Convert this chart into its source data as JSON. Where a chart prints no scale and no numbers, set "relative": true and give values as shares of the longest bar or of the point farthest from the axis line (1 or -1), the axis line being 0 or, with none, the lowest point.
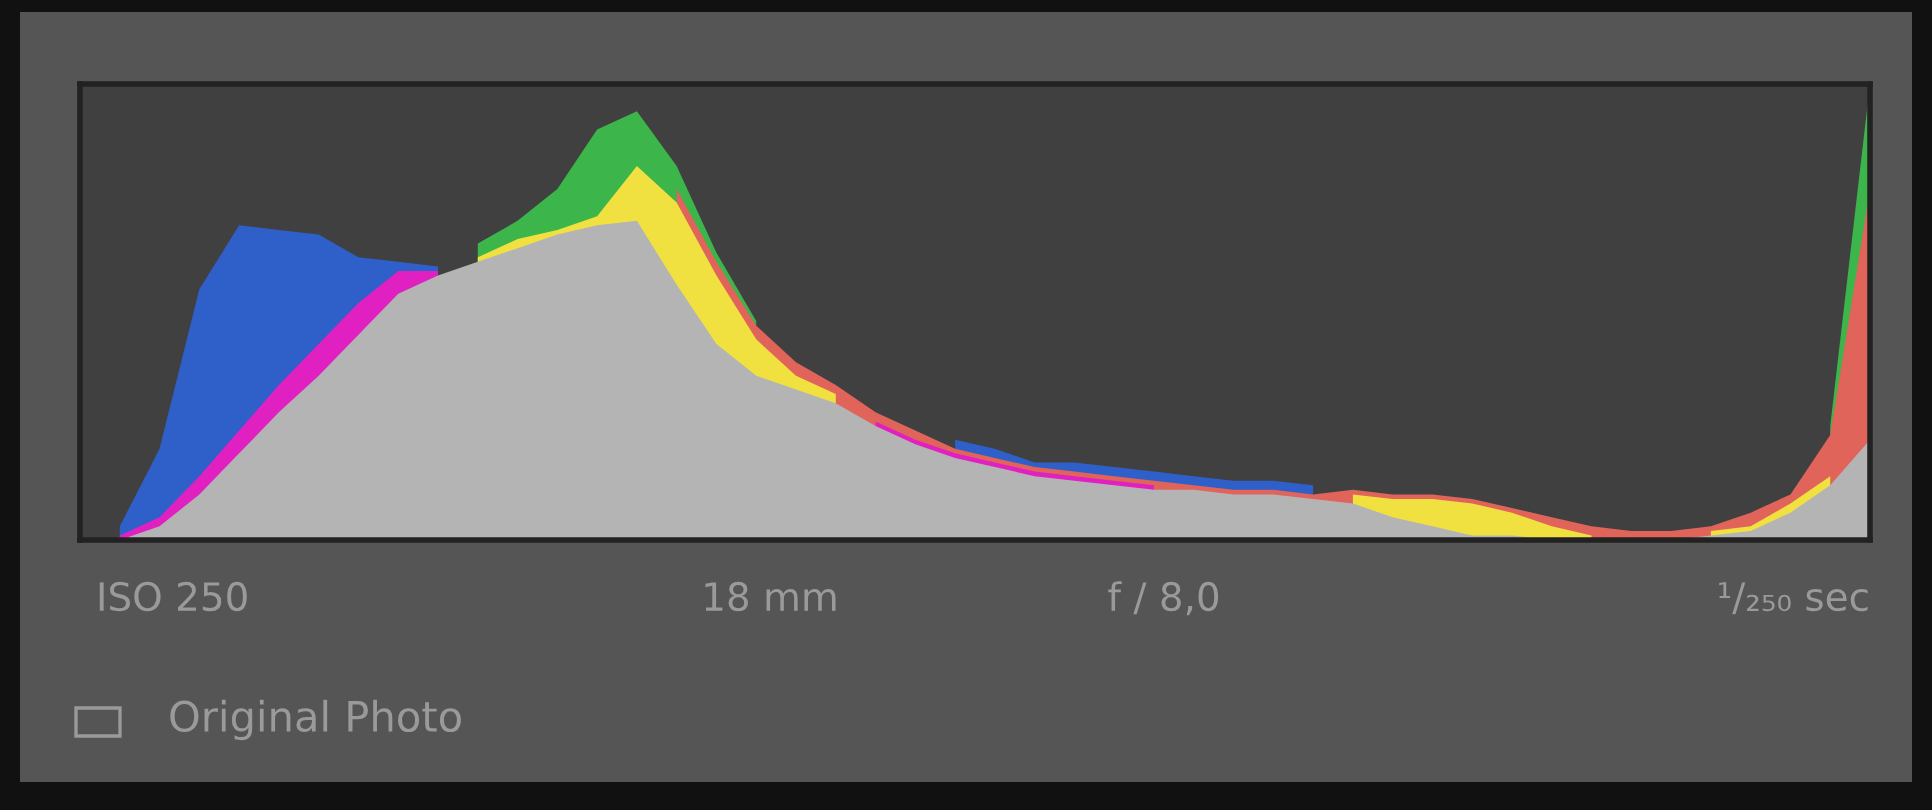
{
  "chart_data": {
    "type": "area",
    "relative": true,
    "categories": [
      null,
      null,
      null,
      null,
      null,
      null,
      null,
      null,
      null,
      null,
      null,
      null,
      null,
      null,
      null,
      null,
      null,
      null,
      null,
      null,
      null,
      null,
      null,
      null,
      null,
      null,
      null,
      null,
      null,
      null,
      null,
      null,
      null,
      null,
      null,
      null,
      null,
      null,
      null,
      null,
      null,
      null,
      null,
      null,
      null,
      null
    ],
    "series": [
      {
        "color": "#2f5fc8",
        "values": [
          null,
          0.03,
          0.2,
          0.55,
          0.69,
          0.68,
          0.67,
          0.62,
          0.61,
          0.6,
          null,
          null,
          null,
          null,
          null,
          null,
          null,
          null,
          null,
          null,
          null,
          null,
          0.22,
          0.2,
          0.17,
          0.17,
          0.16,
          0.15,
          0.14,
          0.13,
          0.13,
          0.12,
          null,
          null,
          null,
          null,
          null,
          null,
          null,
          null,
          null,
          null,
          null,
          null,
          null,
          null
        ]
      },
      {
        "color": "#3cb54a",
        "values": [
          null,
          null,
          null,
          null,
          null,
          null,
          null,
          null,
          null,
          null,
          0.65,
          0.7,
          0.77,
          0.9,
          0.94,
          0.82,
          0.63,
          0.48,
          null,
          null,
          null,
          null,
          null,
          null,
          null,
          null,
          null,
          null,
          null,
          null,
          null,
          null,
          null,
          null,
          null,
          null,
          null,
          null,
          null,
          null,
          null,
          null,
          null,
          null,
          0.25,
          1
        ]
      },
      {
        "color": "#e0645a",
        "values": [
          null,
          null,
          null,
          null,
          null,
          null,
          null,
          null,
          null,
          null,
          null,
          null,
          null,
          null,
          null,
          0.77,
          0.61,
          0.47,
          0.39,
          0.34,
          0.28,
          0.24,
          0.2,
          0.18,
          0.16,
          0.15,
          0.14,
          0.13,
          0.12,
          0.11,
          0.11,
          0.1,
          0.11,
          0.1,
          0.1,
          0.09,
          0.07,
          0.05,
          0.03,
          0.02,
          0.02,
          0.03,
          0.06,
          0.1,
          0.23,
          0.77
        ]
      },
      {
        "color": "#f0e040",
        "values": [
          null,
          null,
          null,
          null,
          null,
          null,
          null,
          null,
          null,
          null,
          0.62,
          0.66,
          0.68,
          0.71,
          0.82,
          0.74,
          0.58,
          0.44,
          0.36,
          0.32,
          null,
          null,
          null,
          null,
          null,
          null,
          null,
          null,
          null,
          null,
          null,
          null,
          0.1,
          0.09,
          0.09,
          0.08,
          0.06,
          0.03,
          0.01,
          null,
          null,
          0.02,
          0.03,
          0.08,
          0.14,
          null
        ]
      },
      {
        "color": "#e020c0",
        "values": [
          null,
          0.01,
          0.05,
          0.14,
          0.24,
          0.34,
          0.43,
          0.52,
          0.59,
          0.59,
          null,
          null,
          null,
          null,
          null,
          null,
          null,
          null,
          null,
          null,
          0.26,
          0.22,
          0.19,
          0.17,
          0.15,
          0.14,
          0.13,
          0.12,
          null,
          null,
          null,
          null,
          null,
          null,
          null,
          null,
          null,
          null,
          null,
          null,
          null,
          null,
          null,
          null,
          null,
          null
        ]
      },
      {
        "color": "#b4b4b4",
        "values": [
          0,
          0,
          0.03,
          0.1,
          0.19,
          0.28,
          0.36,
          0.45,
          0.54,
          0.58,
          0.61,
          0.64,
          0.67,
          0.69,
          0.7,
          0.56,
          0.43,
          0.36,
          0.33,
          0.3,
          0.25,
          0.21,
          0.18,
          0.16,
          0.14,
          0.13,
          0.12,
          0.11,
          0.11,
          0.1,
          0.1,
          0.09,
          0.08,
          0.05,
          0.03,
          0.01,
          0.01,
          0,
          0,
          0,
          0,
          0.01,
          0.02,
          0.06,
          0.12,
          0.22
        ]
      }
    ],
    "annotations": [
      "ISO 250",
      "18 mm",
      "f / 8,0",
      "¹/₂₅₀ sec",
      "Original Photo"
    ]
  }
}
